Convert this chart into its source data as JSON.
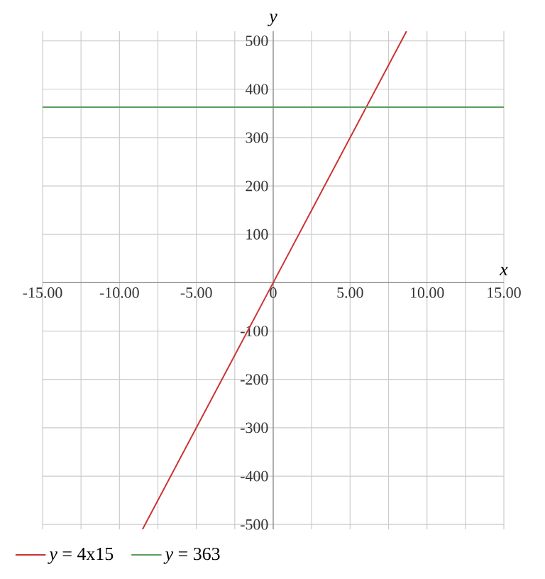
{
  "chart_data": {
    "type": "line",
    "xlabel": "x",
    "ylabel": "y",
    "xlim": [
      -15,
      15
    ],
    "ylim": [
      -510,
      520
    ],
    "xticks": [
      {
        "value": -15,
        "label": "-15.00"
      },
      {
        "value": -12.5,
        "label": null
      },
      {
        "value": -10,
        "label": "-10.00"
      },
      {
        "value": -7.5,
        "label": null
      },
      {
        "value": -5,
        "label": "-5.00"
      },
      {
        "value": -2.5,
        "label": null
      },
      {
        "value": 0,
        "label": "0"
      },
      {
        "value": 2.5,
        "label": null
      },
      {
        "value": 5,
        "label": "5.00"
      },
      {
        "value": 7.5,
        "label": null
      },
      {
        "value": 10,
        "label": "10.00"
      },
      {
        "value": 12.5,
        "label": null
      },
      {
        "value": 15,
        "label": "15.00"
      }
    ],
    "yticks": [
      -500,
      -400,
      -300,
      -200,
      -100,
      {
        "value": 0,
        "label": null
      },
      100,
      200,
      300,
      400,
      500
    ],
    "grid": true,
    "legend": "bottom left",
    "series": [
      {
        "name": "*y* = 4x15",
        "color": "#cc3333",
        "x": [
          -8.5,
          0,
          8.67
        ],
        "values": [
          -510,
          0,
          520
        ]
      },
      {
        "name": "*y* = 363",
        "color": "#5a9e5a",
        "x": [
          -15,
          15
        ],
        "values": [
          363,
          363
        ]
      }
    ]
  }
}
